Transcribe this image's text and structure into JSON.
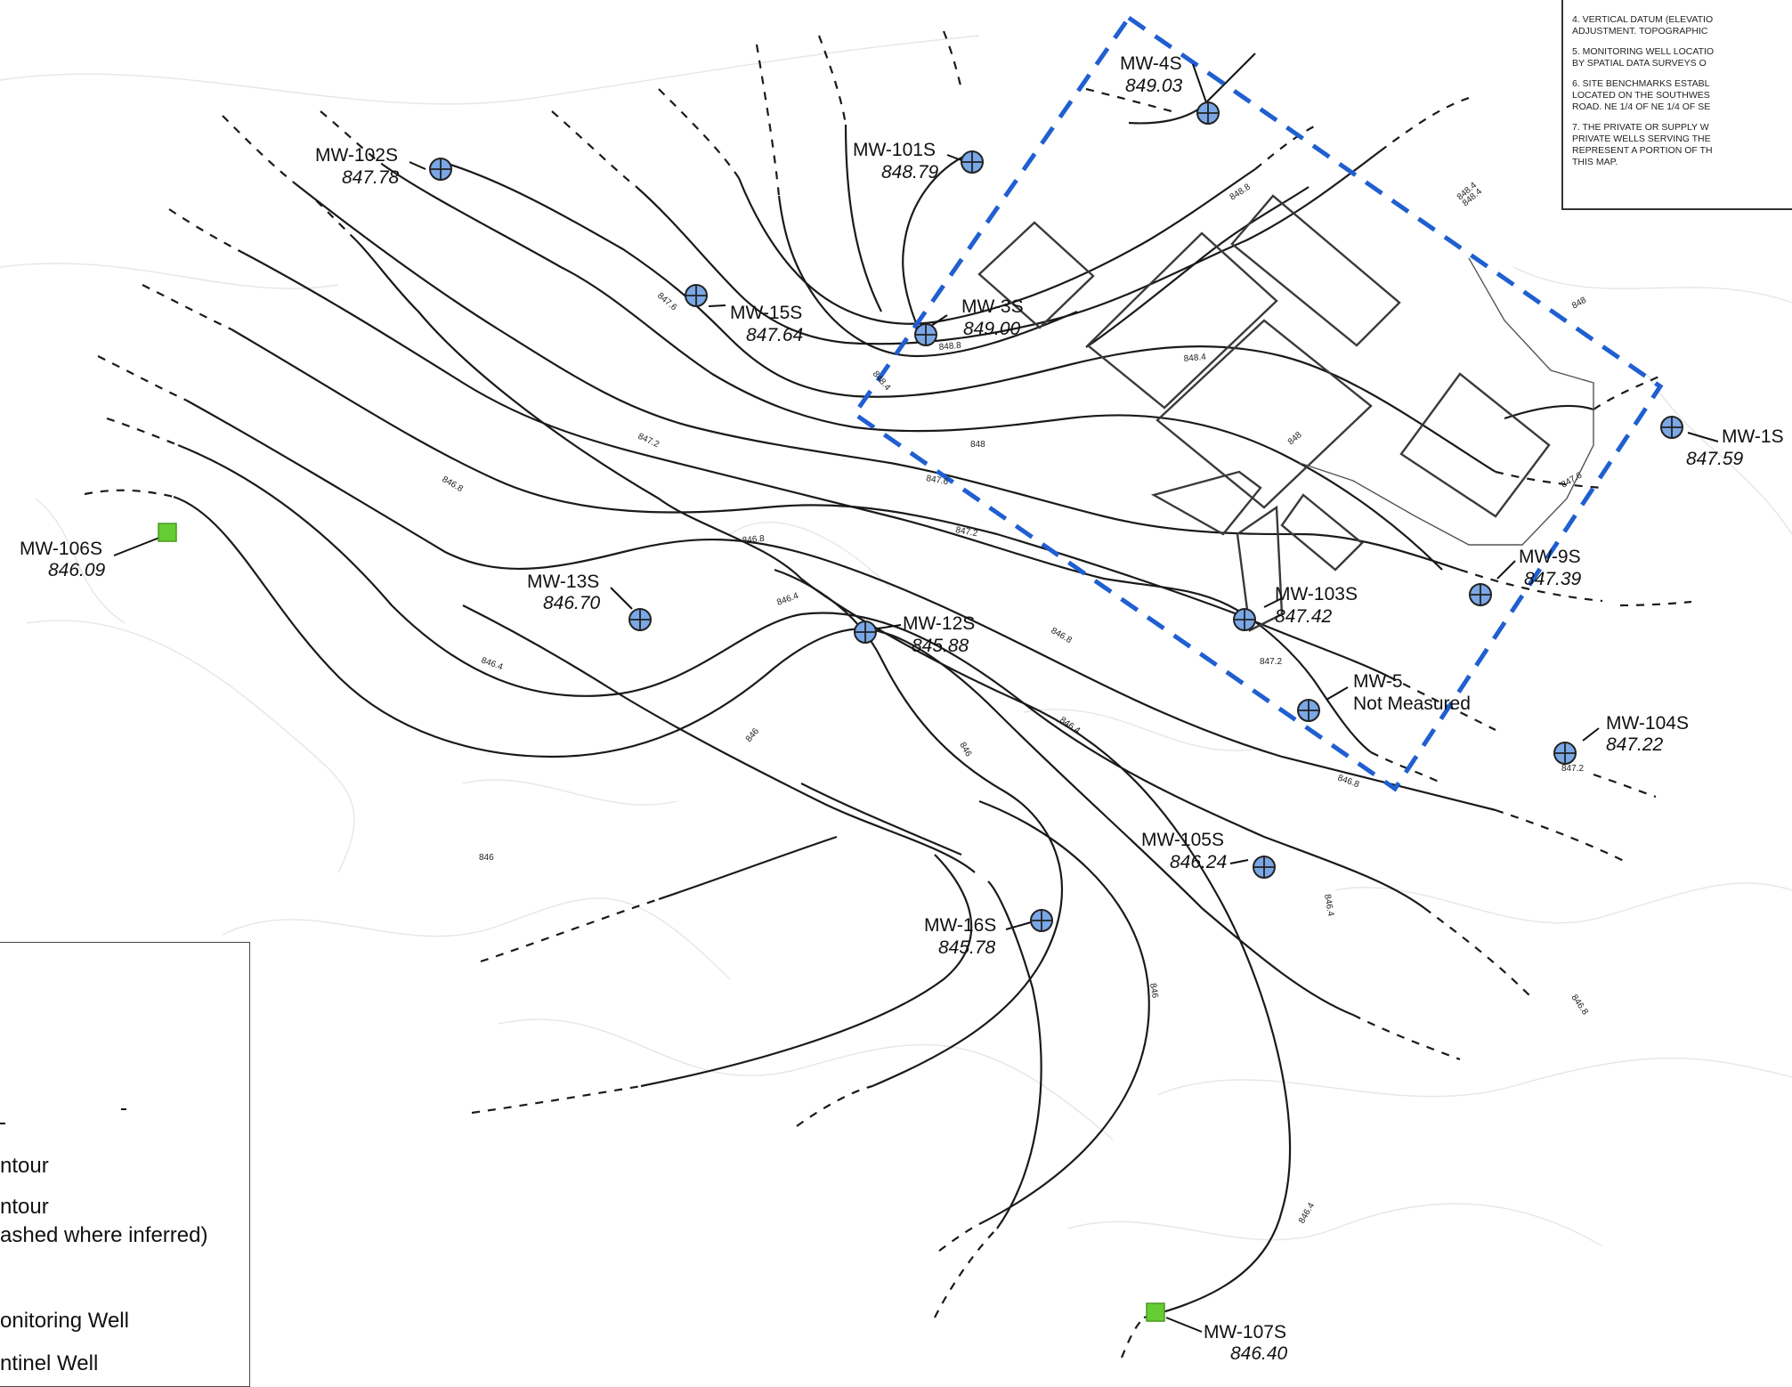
{
  "notes": [
    "4. VERTICAL DATUM (ELEVATIO\nADJUSTMENT. TOPOGRAPHIC",
    "5. MONITORING WELL LOCATIO\nBY SPATIAL DATA SURVEYS O",
    "6. SITE BENCHMARKS ESTABL\nLOCATED ON THE SOUTHWES\nROAD. NE 1/4 OF NE 1/4 OF SE",
    "7. THE PRIVATE OR SUPPLY W\nPRIVATE WELLS SERVING THE\nREPRESENT A PORTION OF TH\nTHIS MAP."
  ],
  "legend": {
    "item1": "ntour",
    "item2_line1": "ntour",
    "item2_line2": "ashed where inferred)",
    "item3": "onitoring Well",
    "item4": "ntinel Well"
  },
  "wells": [
    {
      "id": "mw-4s",
      "name": "MW-4S",
      "elev": "849.03",
      "type": "monitoring"
    },
    {
      "id": "mw-102s",
      "name": "MW-102S",
      "elev": "847.78",
      "type": "monitoring"
    },
    {
      "id": "mw-101s",
      "name": "MW-101S",
      "elev": "848.79",
      "type": "monitoring"
    },
    {
      "id": "mw-15s",
      "name": "MW-15S",
      "elev": "847.64",
      "type": "monitoring"
    },
    {
      "id": "mw-3s",
      "name": "MW-3S",
      "elev": "849.00",
      "type": "monitoring"
    },
    {
      "id": "mw-1s",
      "name": "MW-1S",
      "elev": "847.59",
      "type": "monitoring"
    },
    {
      "id": "mw-106s",
      "name": "MW-106S",
      "elev": "846.09",
      "type": "sentinel"
    },
    {
      "id": "mw-13s",
      "name": "MW-13S",
      "elev": "846.70",
      "type": "monitoring"
    },
    {
      "id": "mw-12s",
      "name": "MW-12S",
      "elev": "845.88",
      "type": "monitoring"
    },
    {
      "id": "mw-9s",
      "name": "MW-9S",
      "elev": "847.39",
      "type": "monitoring"
    },
    {
      "id": "mw-103s",
      "name": "MW-103S",
      "elev": "847.42",
      "type": "monitoring"
    },
    {
      "id": "mw-5",
      "name": "MW-5",
      "elev": "Not Measured",
      "type": "monitoring"
    },
    {
      "id": "mw-104s",
      "name": "MW-104S",
      "elev": "847.22",
      "type": "monitoring"
    },
    {
      "id": "mw-105s",
      "name": "MW-105S",
      "elev": "846.24",
      "type": "monitoring"
    },
    {
      "id": "mw-16s",
      "name": "MW-16S",
      "elev": "845.78",
      "type": "monitoring"
    },
    {
      "id": "mw-107s",
      "name": "MW-107S",
      "elev": "846.40",
      "type": "sentinel"
    }
  ],
  "contour_labels": [
    "848.8",
    "848.4",
    "848",
    "847.6",
    "847.2",
    "846.8",
    "846.4",
    "846",
    "848.8",
    "848.4",
    "848",
    "847.6",
    "847.2",
    "846.8",
    "846.4",
    "846",
    "848",
    "848.4",
    "847.6",
    "847.2",
    "846.8",
    "846.4",
    "846",
    "846.4",
    "846.8",
    "846",
    "846.4",
    "847.2",
    "848.4",
    "846.8"
  ],
  "colors": {
    "boundary": "#1f5fd1",
    "monitoring_well": "#7aa7e6",
    "sentinel_well": "#66cc33",
    "contour": "#1a1a1a"
  }
}
